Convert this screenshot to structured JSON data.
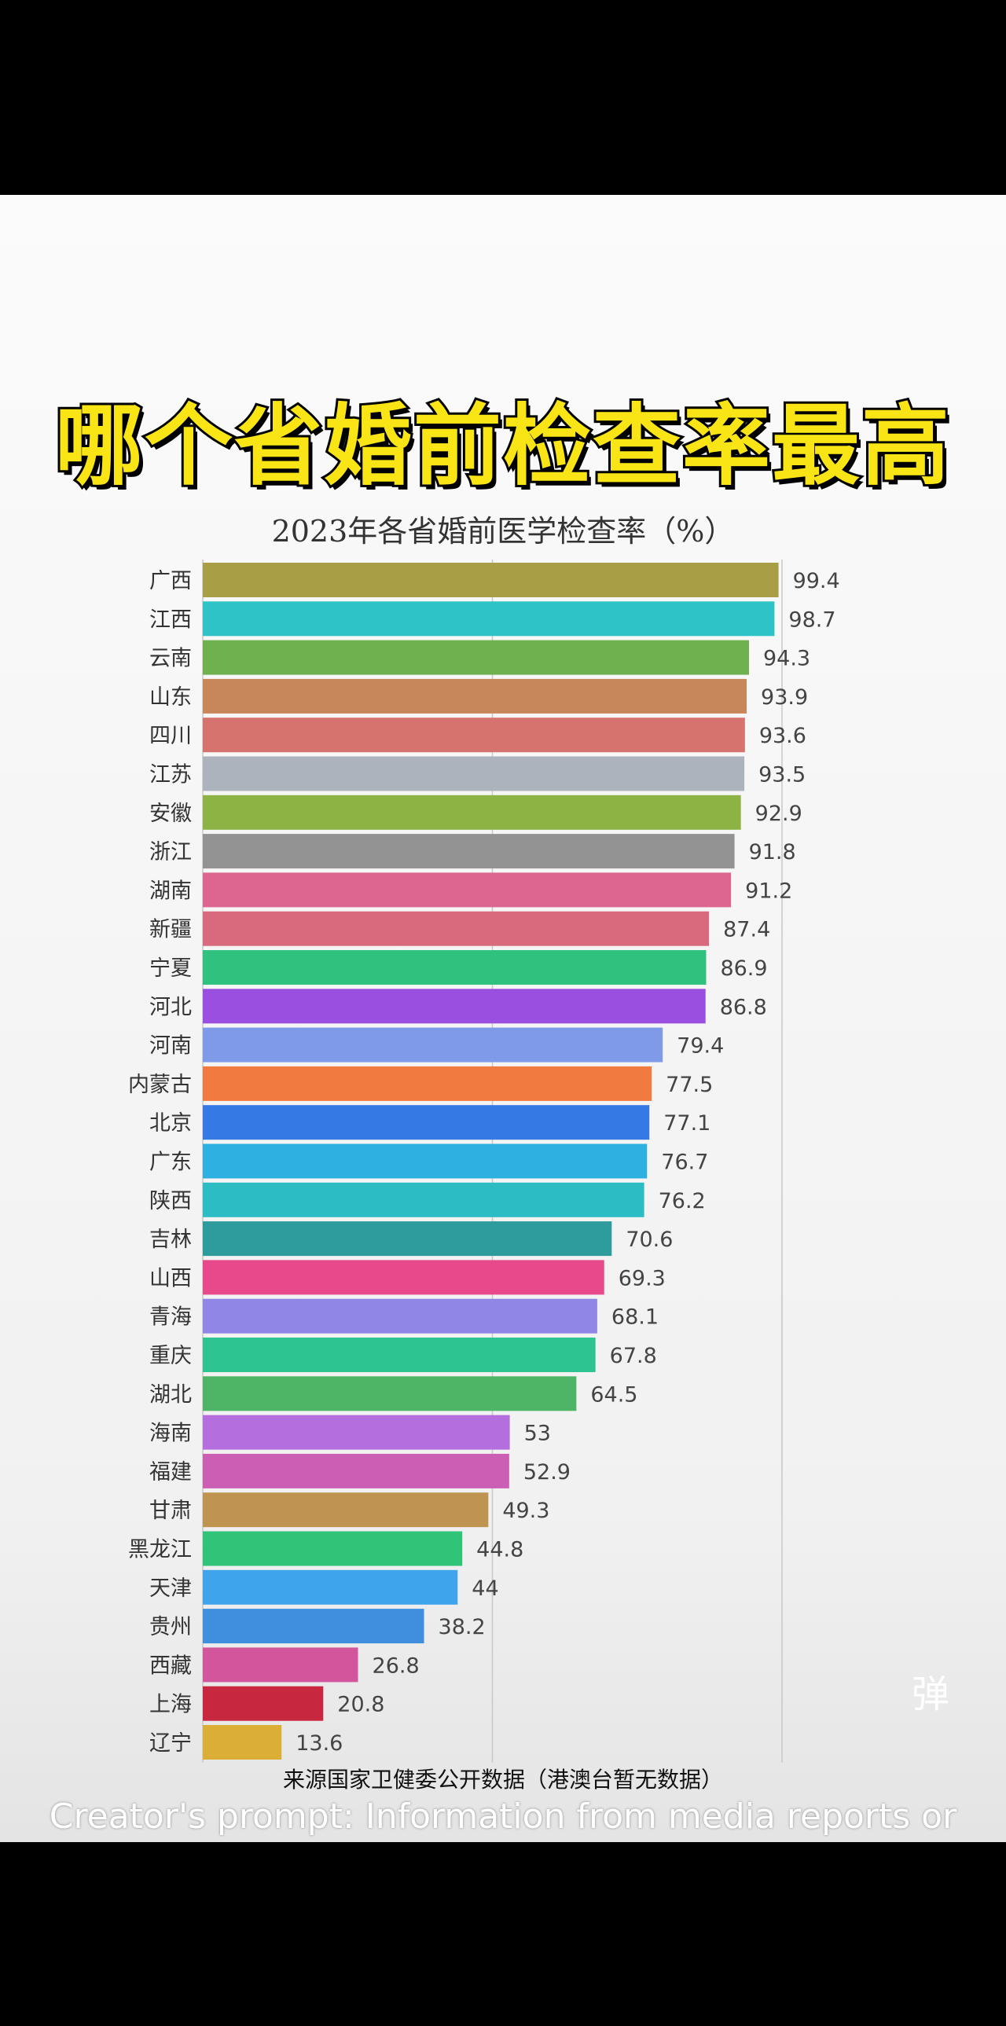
{
  "headline": "哪个省婚前检查率最高",
  "danmu_icon": "弹",
  "source": "来源国家卫健委公开数据（港澳台暂无数据）",
  "creator_note": "Creator's prompt: Information from media reports or",
  "chart_data": {
    "type": "bar",
    "orientation": "horizontal",
    "title": "2023年各省婚前医学检查率（%）",
    "xlim": [
      0,
      100
    ],
    "grid": true,
    "categories": [
      "广西",
      "江西",
      "云南",
      "山东",
      "四川",
      "江苏",
      "安徽",
      "浙江",
      "湖南",
      "新疆",
      "宁夏",
      "河北",
      "河南",
      "内蒙古",
      "北京",
      "广东",
      "陕西",
      "吉林",
      "山西",
      "青海",
      "重庆",
      "湖北",
      "海南",
      "福建",
      "甘肃",
      "黑龙江",
      "天津",
      "贵州",
      "西藏",
      "上海",
      "辽宁"
    ],
    "values": [
      99.4,
      98.7,
      94.3,
      93.9,
      93.6,
      93.5,
      92.9,
      91.8,
      91.2,
      87.4,
      86.9,
      86.8,
      79.4,
      77.5,
      77.1,
      76.7,
      76.2,
      70.6,
      69.3,
      68.1,
      67.8,
      64.5,
      53,
      52.9,
      49.3,
      44.8,
      44,
      38.2,
      26.8,
      20.8,
      13.6
    ],
    "value_labels": [
      "99.4",
      "98.7",
      "94.3",
      "93.9",
      "93.6",
      "93.5",
      "92.9",
      "91.8",
      "91.2",
      "87.4",
      "86.9",
      "86.8",
      "79.4",
      "77.5",
      "77.1",
      "76.7",
      "76.2",
      "70.6",
      "69.3",
      "68.1",
      "67.8",
      "64.5",
      "53",
      "52.9",
      "49.3",
      "44.8",
      "44",
      "38.2",
      "26.8",
      "20.8",
      "13.6"
    ],
    "colors": [
      "#a89e45",
      "#2ec3c6",
      "#6fb04f",
      "#c8875a",
      "#d6736f",
      "#adb3bc",
      "#8cb344",
      "#939393",
      "#dd6690",
      "#d96a7e",
      "#2fc27e",
      "#9a4fe0",
      "#7f9ae8",
      "#f07a40",
      "#3479e4",
      "#2eb1e0",
      "#2bbcc4",
      "#2e9c9c",
      "#e8498b",
      "#8f86e6",
      "#2ec492",
      "#4fb566",
      "#b46ede",
      "#cc5fb4",
      "#bf9350",
      "#2fc477",
      "#3ea4ec",
      "#3f8fde",
      "#d3569c",
      "#c8283f",
      "#dbae35"
    ]
  }
}
